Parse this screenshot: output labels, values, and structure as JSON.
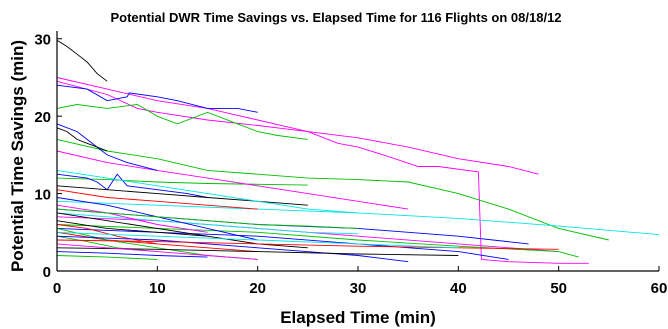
{
  "chart_data": {
    "type": "line",
    "title": "Potential DWR Time Savings vs. Elapsed Time for 116 Flights on 08/18/12",
    "xlabel": "Elapsed Time (min)",
    "ylabel": "Potential Time Savings (min)",
    "xlim": [
      0,
      60
    ],
    "ylim": [
      0,
      31
    ],
    "xticks": [
      "0",
      "10",
      "20",
      "30",
      "40",
      "50",
      "60"
    ],
    "yticks": [
      "0",
      "10",
      "20",
      "30"
    ],
    "grid": false,
    "series": [
      {
        "color": "#000000",
        "x": [
          0,
          1,
          2,
          3,
          4,
          5
        ],
        "y": [
          29.8,
          29,
          28,
          27,
          25.5,
          24.5
        ]
      },
      {
        "color": "#ff00ff",
        "x": [
          0,
          5,
          10,
          15,
          20,
          25,
          28,
          30,
          33,
          36,
          38,
          42,
          42.3,
          45,
          50,
          53
        ],
        "y": [
          25,
          23.5,
          22,
          21,
          19.5,
          18,
          16.5,
          16,
          14.8,
          13.5,
          13.5,
          12.8,
          1.5,
          1.2,
          1,
          1
        ]
      },
      {
        "color": "#ff00ff",
        "x": [
          0,
          5,
          8,
          10,
          15,
          20,
          25,
          30,
          35,
          40,
          45,
          48
        ],
        "y": [
          24.5,
          22.8,
          21,
          20.5,
          19.5,
          18.8,
          18,
          17.2,
          16,
          14.5,
          13.5,
          12.5
        ]
      },
      {
        "color": "#00c000",
        "x": [
          0,
          2,
          5,
          8,
          10,
          12,
          15,
          18,
          20,
          22,
          25
        ],
        "y": [
          21,
          21.5,
          21,
          21.5,
          20,
          19,
          20.5,
          19,
          18,
          17.5,
          17
        ]
      },
      {
        "color": "#0000ff",
        "x": [
          0,
          3,
          5,
          7,
          7.2,
          10,
          12,
          15,
          18,
          20
        ],
        "y": [
          24,
          23.5,
          22,
          22.5,
          23,
          22.5,
          22,
          21,
          21,
          20.5
        ]
      },
      {
        "color": "#00c000",
        "x": [
          0,
          5,
          10,
          15,
          20,
          25,
          30,
          35,
          40,
          45,
          50,
          55
        ],
        "y": [
          17,
          15.5,
          14.5,
          13,
          12.5,
          12,
          11.8,
          11.5,
          10,
          8,
          5.5,
          4
        ]
      },
      {
        "color": "#00e5e5",
        "x": [
          0,
          10,
          20,
          30,
          40,
          50,
          60
        ],
        "y": [
          9,
          8.5,
          8,
          7.5,
          6.8,
          5.8,
          4.7
        ]
      },
      {
        "color": "#00c000",
        "x": [
          0,
          5,
          10,
          15,
          20,
          25
        ],
        "y": [
          12,
          11.8,
          11.5,
          11.3,
          11.2,
          11.1
        ]
      },
      {
        "color": "#0000ff",
        "x": [
          0,
          3,
          4,
          5,
          6,
          7,
          10,
          13,
          15
        ],
        "y": [
          12.5,
          12,
          11.5,
          10.5,
          12.5,
          11,
          10.5,
          10,
          9.5
        ]
      },
      {
        "color": "#000000",
        "x": [
          0,
          5,
          10,
          15,
          20,
          25
        ],
        "y": [
          11,
          10.5,
          10,
          9.5,
          9,
          8.5
        ]
      },
      {
        "color": "#ff0000",
        "x": [
          0,
          5,
          10,
          15,
          20
        ],
        "y": [
          10.5,
          9.5,
          9,
          8.5,
          8
        ]
      },
      {
        "color": "#0000ff",
        "x": [
          0,
          10,
          20,
          30,
          40,
          47
        ],
        "y": [
          8,
          7,
          6,
          5.5,
          4.5,
          3.5
        ]
      },
      {
        "color": "#ff00ff",
        "x": [
          0,
          10,
          20,
          30,
          40,
          50
        ],
        "y": [
          7,
          6.5,
          5.5,
          4.5,
          3.5,
          2.5
        ]
      },
      {
        "color": "#00c000",
        "x": [
          0,
          10,
          20,
          30,
          40,
          50,
          52
        ],
        "y": [
          6,
          5.5,
          5,
          4,
          3.2,
          2.5,
          1.8
        ]
      },
      {
        "color": "#0000ff",
        "x": [
          0,
          10,
          20,
          30,
          40,
          45
        ],
        "y": [
          5.5,
          5,
          4.5,
          3.5,
          2.5,
          1.5
        ]
      },
      {
        "color": "#000000",
        "x": [
          0,
          5,
          10,
          15,
          20,
          25
        ],
        "y": [
          6.5,
          5.5,
          5,
          4.5,
          3.5,
          3
        ]
      },
      {
        "color": "#ff0000",
        "x": [
          0,
          5,
          10,
          15,
          20
        ],
        "y": [
          5,
          4,
          3.5,
          3,
          2.5
        ]
      },
      {
        "color": "#00e5e5",
        "x": [
          0,
          5,
          10,
          15,
          20,
          25,
          30
        ],
        "y": [
          7.5,
          7,
          6.5,
          6,
          5.5,
          5,
          4.8
        ]
      },
      {
        "color": "#00c000",
        "x": [
          0,
          5,
          10,
          15,
          20
        ],
        "y": [
          5.5,
          4,
          3,
          2,
          1.5
        ]
      },
      {
        "color": "#0000ff",
        "x": [
          0,
          5,
          10,
          15,
          20
        ],
        "y": [
          9.5,
          8.5,
          7,
          5.5,
          4
        ]
      },
      {
        "color": "#ff00ff",
        "x": [
          0,
          5,
          10,
          15
        ],
        "y": [
          8.5,
          7.5,
          6,
          5
        ]
      },
      {
        "color": "#000000",
        "x": [
          0,
          5,
          10,
          15
        ],
        "y": [
          7.5,
          6.5,
          5.5,
          4.5
        ]
      },
      {
        "color": "#ff0000",
        "x": [
          0,
          3,
          6,
          10
        ],
        "y": [
          6,
          5.5,
          4.5,
          3.5
        ]
      },
      {
        "color": "#00c000",
        "x": [
          0,
          3,
          6,
          10
        ],
        "y": [
          4.5,
          3.8,
          3,
          2.5
        ]
      },
      {
        "color": "#0000ff",
        "x": [
          0,
          10,
          20,
          30,
          35
        ],
        "y": [
          4.5,
          4,
          3,
          2,
          1.2
        ]
      },
      {
        "color": "#00e5e5",
        "x": [
          0,
          5,
          10,
          15,
          20,
          25,
          30
        ],
        "y": [
          13,
          12,
          11,
          10,
          9,
          8,
          7.5
        ]
      },
      {
        "color": "#ff00ff",
        "x": [
          0,
          5,
          10,
          15,
          20,
          25,
          30,
          35
        ],
        "y": [
          15.5,
          14,
          13,
          12,
          11,
          10,
          9,
          8
        ]
      },
      {
        "color": "#0000ff",
        "x": [
          0,
          2,
          3,
          4,
          5,
          7,
          10
        ],
        "y": [
          19,
          18,
          17,
          16,
          15,
          14,
          13
        ]
      },
      {
        "color": "#000000",
        "x": [
          0,
          1,
          2,
          3,
          4,
          5
        ],
        "y": [
          18.5,
          18,
          17,
          16.5,
          16,
          15.5
        ]
      },
      {
        "color": "#00c000",
        "x": [
          0,
          5,
          10,
          15,
          20,
          25,
          30
        ],
        "y": [
          8,
          7.5,
          7,
          6.5,
          6,
          5.8,
          5.5
        ]
      },
      {
        "color": "#ff0000",
        "x": [
          0,
          10,
          20,
          30,
          40,
          50
        ],
        "y": [
          4,
          3.8,
          3.5,
          3.2,
          3,
          2.8
        ]
      },
      {
        "color": "#000000",
        "x": [
          0,
          10,
          20,
          30,
          40
        ],
        "y": [
          3,
          2.8,
          2.5,
          2.2,
          2
        ]
      },
      {
        "color": "#00e5e5",
        "x": [
          0,
          10,
          20,
          30,
          40
        ],
        "y": [
          5,
          4.5,
          4,
          3.5,
          3
        ]
      },
      {
        "color": "#ff00ff",
        "x": [
          0,
          5,
          10,
          15,
          20
        ],
        "y": [
          3.5,
          3,
          2.5,
          2,
          1.5
        ]
      },
      {
        "color": "#0000ff",
        "x": [
          0,
          5,
          10,
          15
        ],
        "y": [
          2.5,
          2.3,
          2,
          1.8
        ]
      },
      {
        "color": "#00c000",
        "x": [
          0,
          5,
          10
        ],
        "y": [
          2,
          1.8,
          1.5
        ]
      }
    ]
  }
}
